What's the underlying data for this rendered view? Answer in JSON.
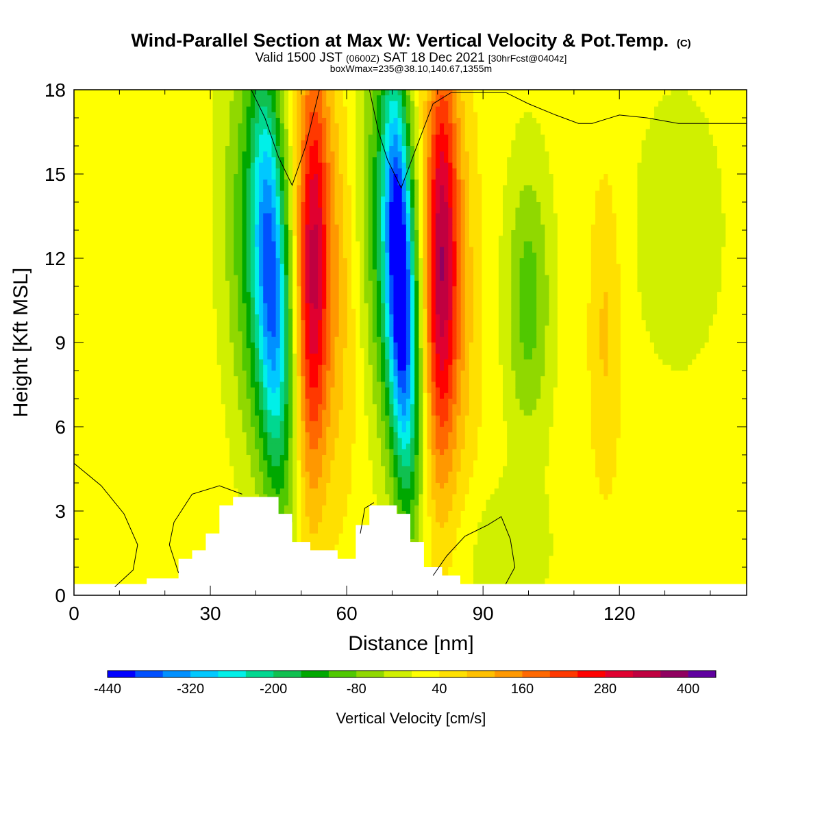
{
  "chart_data": {
    "type": "heatmap",
    "title": "Wind-Parallel Section at Max W: Vertical Velocity & Pot.Temp.",
    "title_mark": "(C)",
    "subtitle_main": "Valid 1500 JST",
    "subtitle_z": "(0600Z)",
    "subtitle_date": "SAT 18 Dec 2021",
    "subtitle_fcst": "[30hrFcst@0404z]",
    "subtitle2": "boxWmax=235@38.10,140.67,1355m",
    "xlabel": "Distance [nm]",
    "ylabel": "Height [Kft MSL]",
    "xlim": [
      0,
      148
    ],
    "ylim": [
      0,
      18
    ],
    "x_ticks": [
      0,
      30,
      60,
      90,
      120
    ],
    "y_ticks": [
      0,
      3,
      6,
      9,
      12,
      15,
      18
    ],
    "grid": false,
    "colorbar": {
      "title": "Vertical Velocity [cm/s]",
      "tick_labels": [
        "-440",
        "-320",
        "-200",
        "-80",
        "40",
        "160",
        "280",
        "400"
      ],
      "tick_values": [
        -440,
        -320,
        -200,
        -80,
        40,
        160,
        280,
        400
      ],
      "range": [
        -440,
        440
      ],
      "step": 40,
      "colors": [
        "#0000ff",
        "#0050ff",
        "#0090ff",
        "#00c8ff",
        "#00f0e8",
        "#00d890",
        "#10c050",
        "#00a800",
        "#50c800",
        "#90d800",
        "#d0f000",
        "#ffff00",
        "#ffe000",
        "#ffc000",
        "#ff9800",
        "#ff6800",
        "#ff3800",
        "#ff0000",
        "#e00030",
        "#c00040",
        "#900060",
        "#6000a0"
      ]
    },
    "background_value": 20,
    "fields": [
      {
        "type": "band",
        "x_bottom": 44,
        "x_top": 39,
        "width": 7,
        "peak": -170
      },
      {
        "type": "band",
        "x_bottom": 46,
        "x_top": 42,
        "width": 3.6,
        "peak": -270
      },
      {
        "type": "band",
        "x_bottom": 52,
        "x_top": 52.5,
        "width": 3.4,
        "peak": 260
      },
      {
        "type": "band",
        "x_bottom": 57,
        "x_top": 56,
        "width": 6,
        "peak": 100
      },
      {
        "type": "band",
        "x_bottom": 74,
        "x_top": 68,
        "width": 6.5,
        "peak": -200
      },
      {
        "type": "band",
        "x_bottom": 74,
        "x_top": 70.5,
        "width": 3.0,
        "peak": -340
      },
      {
        "type": "band",
        "x_bottom": 80,
        "x_top": 80.8,
        "width": 3.5,
        "peak": 250
      },
      {
        "type": "band",
        "x_bottom": 84,
        "x_top": 82,
        "width": 5.5,
        "peak": 120
      },
      {
        "type": "blob",
        "x": 100,
        "y": 10.5,
        "sx": 5,
        "sy": 5,
        "peak": -120
      },
      {
        "type": "blob",
        "x": 117,
        "y": 9.5,
        "sx": 3.5,
        "sy": 5.5,
        "peak": 70
      },
      {
        "type": "blob",
        "x": 133,
        "y": 13,
        "sx": 12,
        "sy": 6,
        "peak": -40
      },
      {
        "type": "blob",
        "x": 95,
        "y": 1.5,
        "sx": 10,
        "sy": 2.5,
        "peak": -50
      }
    ],
    "terrain": [
      [
        0,
        0.4
      ],
      [
        8,
        0.4
      ],
      [
        16,
        0.6
      ],
      [
        23,
        1.3
      ],
      [
        26,
        1.6
      ],
      [
        29,
        2.2
      ],
      [
        32,
        3.2
      ],
      [
        35,
        3.5
      ],
      [
        45,
        2.9
      ],
      [
        48,
        1.9
      ],
      [
        52,
        1.6
      ],
      [
        58,
        1.3
      ],
      [
        62,
        2.5
      ],
      [
        65,
        3.2
      ],
      [
        71,
        2.9
      ],
      [
        74,
        1.9
      ],
      [
        77,
        1.0
      ],
      [
        81,
        0.7
      ],
      [
        85,
        0.4
      ],
      [
        148,
        0.4
      ]
    ],
    "isentropes": [
      [
        [
          0,
          4.7
        ],
        [
          6,
          3.9
        ],
        [
          11,
          2.9
        ],
        [
          14,
          1.8
        ],
        [
          13,
          0.9
        ],
        [
          9,
          0.3
        ]
      ],
      [
        [
          23,
          0.8
        ],
        [
          21,
          1.8
        ],
        [
          22,
          2.6
        ],
        [
          26,
          3.6
        ],
        [
          32,
          3.9
        ],
        [
          37,
          3.6
        ]
      ],
      [
        [
          79,
          0.7
        ],
        [
          82,
          1.4
        ],
        [
          86,
          2.1
        ],
        [
          91,
          2.5
        ],
        [
          94,
          2.8
        ],
        [
          96,
          2.0
        ],
        [
          97,
          1.0
        ],
        [
          95,
          0.4
        ]
      ],
      [
        [
          63,
          2.2
        ],
        [
          64,
          3.1
        ],
        [
          66,
          3.3
        ]
      ],
      [
        [
          39,
          18
        ],
        [
          42,
          17
        ],
        [
          45,
          15.6
        ],
        [
          48,
          14.6
        ],
        [
          51,
          16
        ],
        [
          54,
          18
        ]
      ],
      [
        [
          65,
          18
        ],
        [
          67,
          16.5
        ],
        [
          69,
          15.5
        ],
        [
          72,
          14.5
        ],
        [
          75,
          15.8
        ],
        [
          79,
          17.5
        ],
        [
          83,
          17.9
        ],
        [
          87,
          17.9
        ],
        [
          91,
          17.9
        ],
        [
          95,
          17.9
        ],
        [
          100,
          17.5
        ],
        [
          106,
          17.1
        ],
        [
          111,
          16.8
        ],
        [
          114,
          16.8
        ],
        [
          120,
          17.1
        ],
        [
          126,
          17.0
        ],
        [
          133,
          16.8
        ],
        [
          140,
          16.8
        ],
        [
          148,
          16.8
        ]
      ]
    ]
  }
}
